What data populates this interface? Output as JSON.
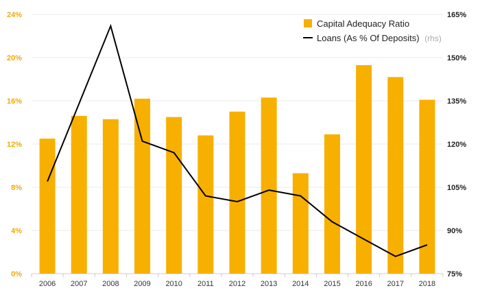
{
  "chart_data": {
    "type": "bar",
    "categories": [
      "2006",
      "2007",
      "2008",
      "2009",
      "2010",
      "2011",
      "2012",
      "2013",
      "2014",
      "2015",
      "2016",
      "2017",
      "2018"
    ],
    "series": [
      {
        "name": "Capital Adequacy Ratio",
        "type": "bar",
        "axis": "left",
        "color": "#f7b000",
        "values": [
          12.5,
          14.6,
          14.3,
          16.2,
          14.5,
          12.8,
          15.0,
          16.3,
          9.3,
          12.9,
          19.3,
          18.2,
          16.1
        ]
      },
      {
        "name": "Loans (As % Of Deposits)",
        "name_suffix": "(rhs)",
        "type": "line",
        "axis": "right",
        "color": "#000000",
        "values": [
          107,
          134,
          161,
          121,
          117,
          102,
          100,
          104,
          102,
          93,
          87,
          81,
          85
        ]
      }
    ],
    "y_left": {
      "ticks": [
        "0%",
        "4%",
        "8%",
        "12%",
        "16%",
        "20%",
        "24%"
      ],
      "lim": [
        0,
        24
      ]
    },
    "y_right": {
      "ticks": [
        "75%",
        "90%",
        "105%",
        "120%",
        "135%",
        "150%",
        "165%"
      ],
      "lim": [
        75,
        165
      ]
    },
    "grid": true,
    "legend_position": "top-right",
    "title": "",
    "xlabel": "",
    "ylabel": ""
  }
}
